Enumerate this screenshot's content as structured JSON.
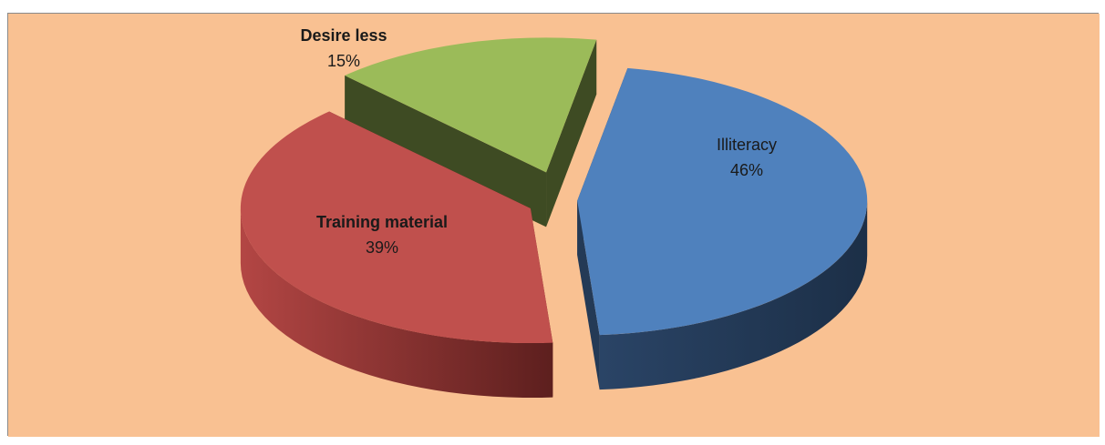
{
  "chart_data": {
    "type": "pie",
    "style": "3d-exploded",
    "background_color": "#f9c192",
    "border_color": "#8a8a8a",
    "slices": [
      {
        "label": "Illiteracy",
        "percent_label": "46%",
        "value": 46,
        "color": "#4f81bd",
        "side_color": "#243a56"
      },
      {
        "label": "Training material",
        "percent_label": "39%",
        "value": 39,
        "color": "#c0504d",
        "side_color": "#6a2422"
      },
      {
        "label": "Desire less",
        "percent_label": "15%",
        "value": 15,
        "color": "#9bbb59",
        "side_color": "#3e4b23"
      }
    ],
    "legend": "none"
  }
}
